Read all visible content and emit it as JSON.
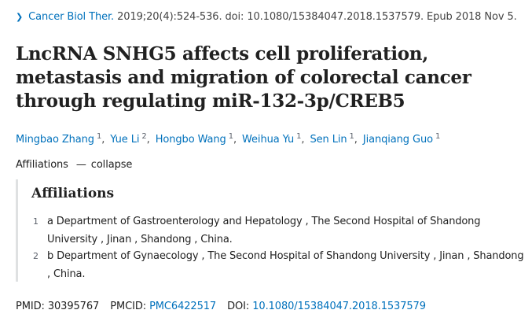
{
  "citation": {
    "chevron_icon": "chevron-right-icon",
    "journal": "Cancer Biol Ther.",
    "details": "2019;20(4):524-536. doi: 10.1080/15384047.2018.1537579. Epub 2018 Nov 5."
  },
  "article": {
    "title": "LncRNA SNHG5 affects cell proliferation, metastasis and migration of colorectal cancer through regulating miR-132-3p/CREB5"
  },
  "authors": [
    {
      "name": "Mingbao Zhang",
      "affil": "1"
    },
    {
      "name": "Yue Li",
      "affil": "2"
    },
    {
      "name": "Hongbo Wang",
      "affil": "1"
    },
    {
      "name": "Weihua Yu",
      "affil": "1"
    },
    {
      "name": "Sen Lin",
      "affil": "1"
    },
    {
      "name": "Jianqiang Guo",
      "affil": "1"
    }
  ],
  "author_separator": ",",
  "affiliations_toggle": {
    "label": "Affiliations",
    "dash": "—",
    "action": "collapse"
  },
  "affiliations": {
    "heading": "Affiliations",
    "items": [
      {
        "num": "1",
        "text": "a Department of Gastroenterology and Hepatology , The Second Hospital of Shandong University , Jinan , Shandong , China."
      },
      {
        "num": "2",
        "text": "b Department of Gynaecology , The Second Hospital of Shandong University , Jinan , Shandong , China."
      }
    ]
  },
  "identifiers": {
    "pmid_label": "PMID:",
    "pmid": "30395767",
    "pmcid_label": "PMCID:",
    "pmcid": "PMC6422517",
    "doi_label": "DOI:",
    "doi": "10.1080/15384047.2018.1537579"
  },
  "colors": {
    "link": "#0071bc",
    "text": "#212121",
    "muted": "#5b616b",
    "border": "#dfe1e2"
  }
}
